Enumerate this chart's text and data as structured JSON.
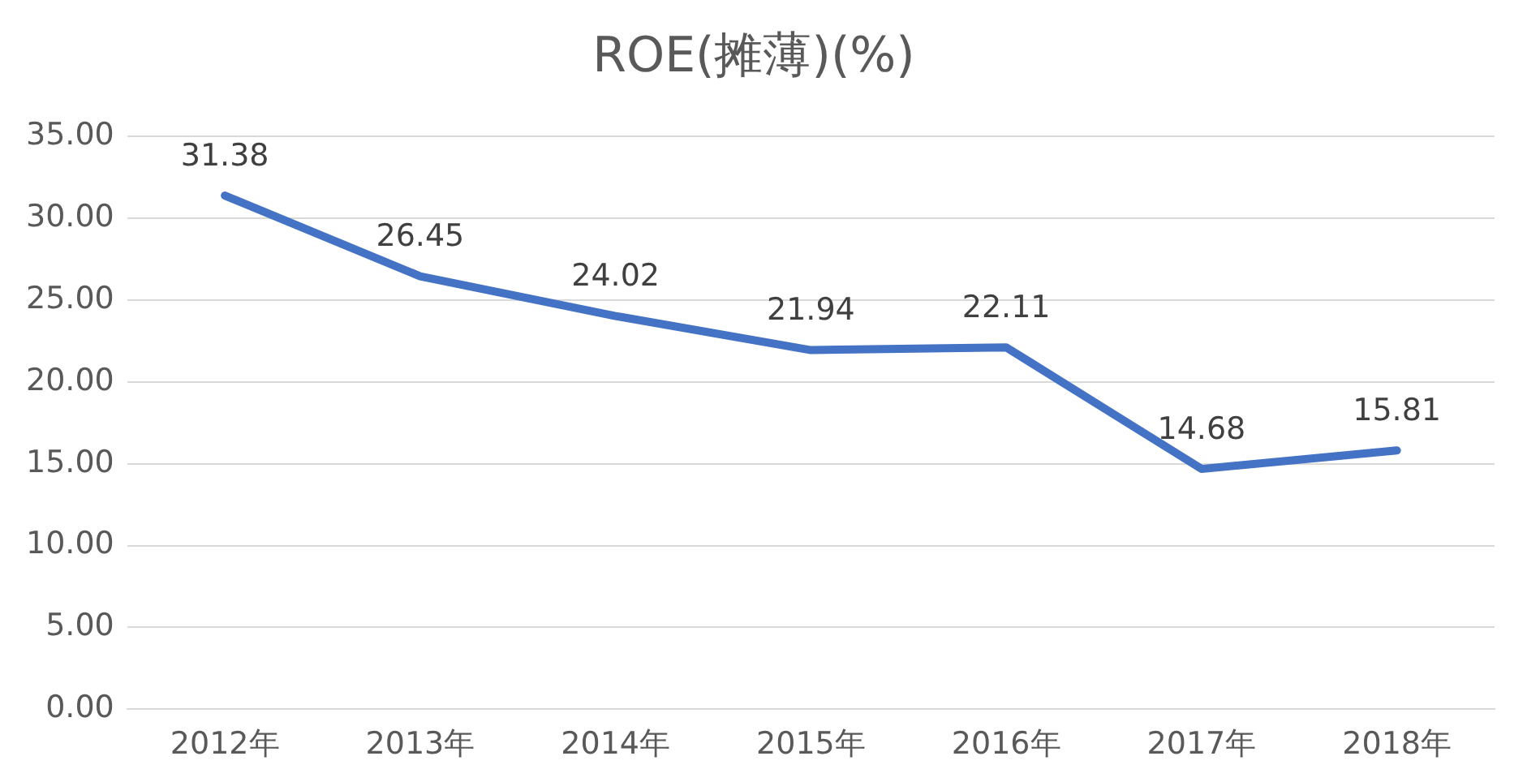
{
  "chart_data": {
    "type": "line",
    "title": "ROE(摊薄)(%)",
    "categories": [
      "2012年",
      "2013年",
      "2014年",
      "2015年",
      "2016年",
      "2017年",
      "2018年"
    ],
    "series": [
      {
        "color": "#4472c4",
        "values": [
          31.38,
          26.45,
          24.02,
          21.94,
          22.11,
          14.68,
          15.81
        ]
      }
    ],
    "ylim": [
      0,
      35
    ],
    "yticks": [
      {
        "value": 0,
        "label": "0.00"
      },
      {
        "value": 5,
        "label": "5.00"
      },
      {
        "value": 10,
        "label": "10.00"
      },
      {
        "value": 15,
        "label": "15.00"
      },
      {
        "value": 20,
        "label": "20.00"
      },
      {
        "value": 25,
        "label": "25.00"
      },
      {
        "value": 30,
        "label": "30.00"
      },
      {
        "value": 35,
        "label": "35.00"
      }
    ],
    "grid": "y",
    "data_labels": true,
    "marker": "none",
    "line_style": "solid",
    "legend": false
  }
}
